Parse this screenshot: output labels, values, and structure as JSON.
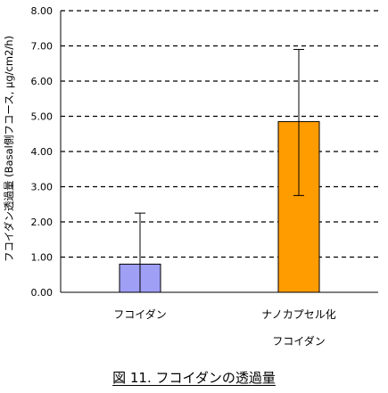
{
  "caption": "図 11. フコイダンの透過量",
  "chart_data": {
    "type": "bar",
    "ylabel": "フコイダン透過量 (Basal側フコース, μg/cm2/h)",
    "ylim": [
      0,
      8
    ],
    "yticks": [
      "0.00",
      "1.00",
      "2.00",
      "3.00",
      "4.00",
      "5.00",
      "6.00",
      "7.00",
      "8.00"
    ],
    "grid": "horizontal dashed",
    "categories": [
      [
        "フコイダン"
      ],
      [
        "ナノカプセル化",
        "フコイダン"
      ]
    ],
    "values": [
      0.8,
      4.85
    ],
    "error_upper": [
      2.25,
      6.9
    ],
    "error_lower": [
      0,
      2.75
    ],
    "colors": [
      "#9f9ff6",
      "#ff9c00"
    ]
  }
}
